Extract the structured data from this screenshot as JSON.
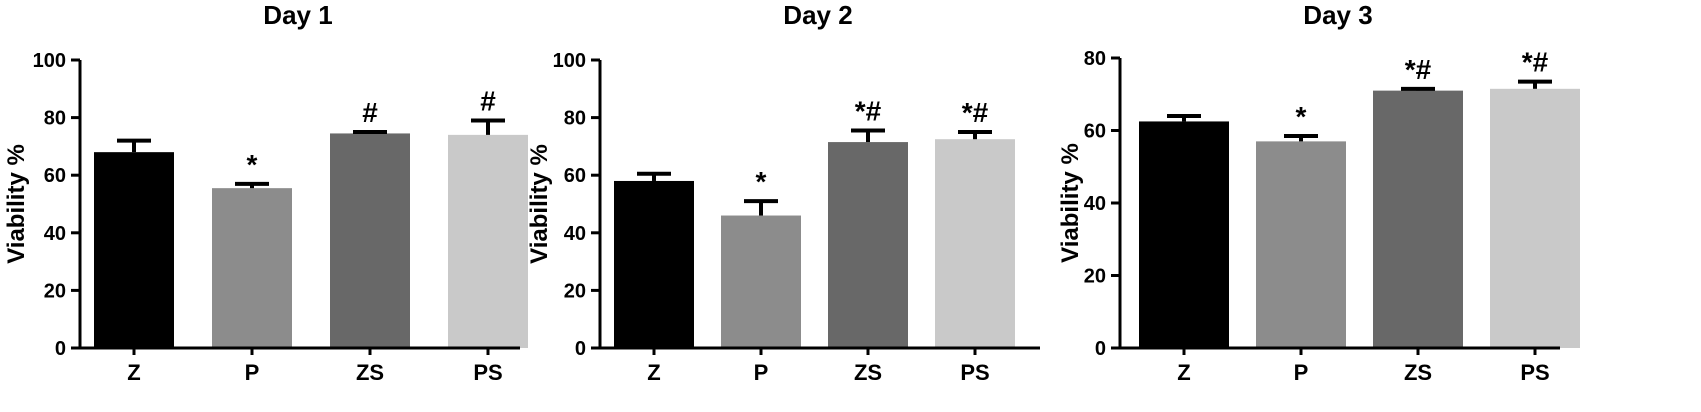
{
  "chart_data": [
    {
      "type": "bar",
      "title": "Day 1",
      "ylabel": "Viability %",
      "xlabel": "",
      "ylim": [
        0,
        100
      ],
      "yticks": [
        0,
        20,
        40,
        60,
        80,
        100
      ],
      "categories": [
        "Z",
        "P",
        "ZS",
        "PS"
      ],
      "values": [
        68,
        55.5,
        74.5,
        74
      ],
      "errors": [
        4,
        1.5,
        0.5,
        5
      ],
      "annotations": [
        "",
        "*",
        "#",
        "#"
      ],
      "colors": [
        "#000000",
        "#8c8c8c",
        "#686868",
        "#c9c9c9"
      ],
      "grid": false,
      "legend": "none"
    },
    {
      "type": "bar",
      "title": "Day 2",
      "ylabel": "Viability %",
      "xlabel": "",
      "ylim": [
        0,
        100
      ],
      "yticks": [
        0,
        20,
        40,
        60,
        80,
        100
      ],
      "categories": [
        "Z",
        "P",
        "ZS",
        "PS"
      ],
      "values": [
        58,
        46,
        71.5,
        72.5
      ],
      "errors": [
        2.5,
        5,
        4,
        2.5
      ],
      "annotations": [
        "",
        "*",
        "*#",
        "*#"
      ],
      "colors": [
        "#000000",
        "#8c8c8c",
        "#686868",
        "#c9c9c9"
      ],
      "grid": false,
      "legend": "none"
    },
    {
      "type": "bar",
      "title": "Day 3",
      "ylabel": "Viability %",
      "xlabel": "",
      "ylim": [
        0,
        80
      ],
      "yticks": [
        0,
        20,
        40,
        60,
        80
      ],
      "categories": [
        "Z",
        "P",
        "ZS",
        "PS"
      ],
      "values": [
        62.5,
        57,
        71,
        71.5
      ],
      "errors": [
        1.5,
        1.5,
        0.5,
        2
      ],
      "annotations": [
        "",
        "*",
        "*#",
        "*#"
      ],
      "colors": [
        "#000000",
        "#8c8c8c",
        "#686868",
        "#c9c9c9"
      ],
      "grid": false,
      "legend": "none"
    }
  ]
}
